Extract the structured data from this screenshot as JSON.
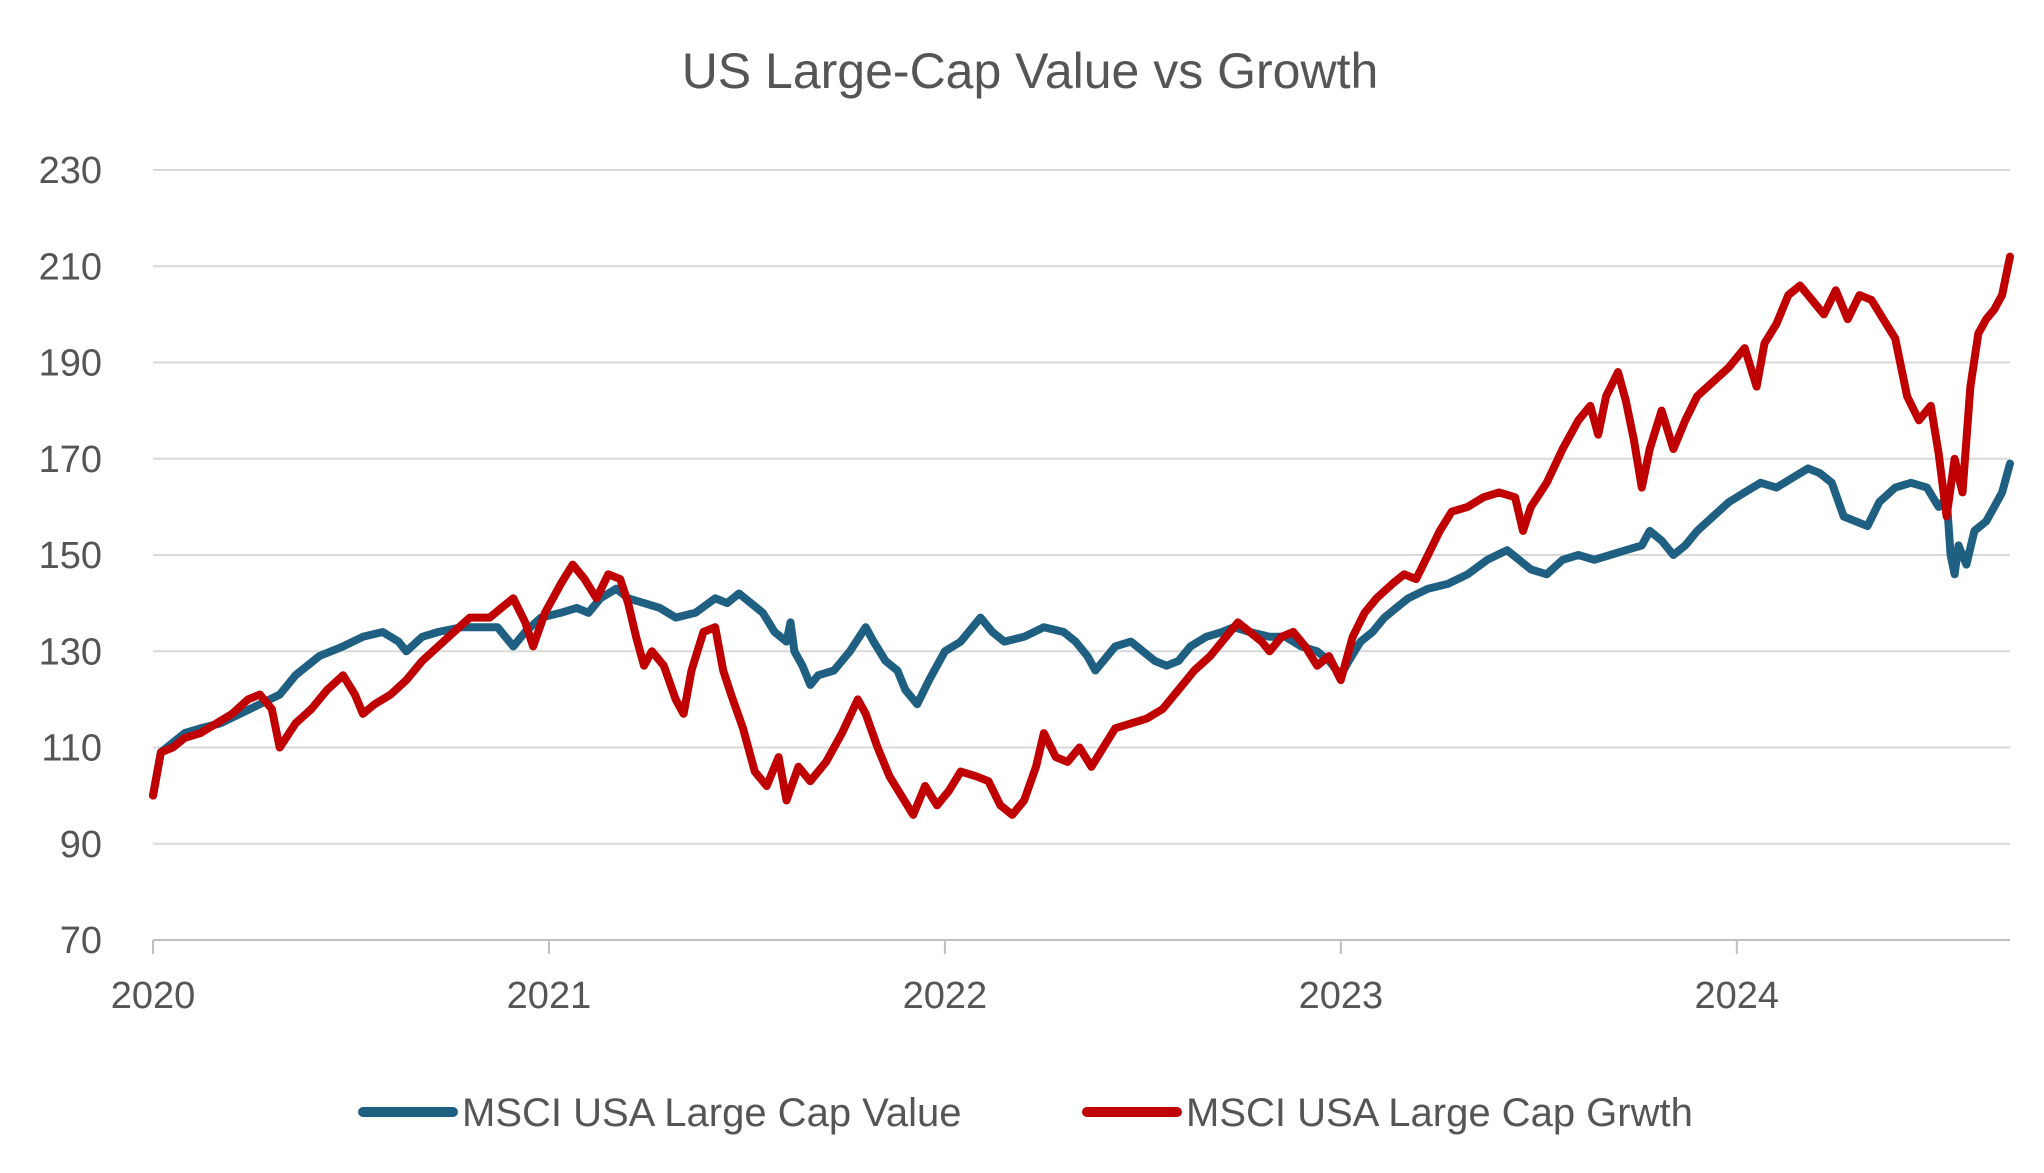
{
  "chart_data": {
    "type": "line",
    "title": "US Large-Cap Value vs Growth",
    "xlabel": "",
    "ylabel": "",
    "ylim": [
      70,
      230
    ],
    "yticks": [
      70,
      90,
      110,
      130,
      150,
      170,
      190,
      210,
      230
    ],
    "xlim": [
      2020.0,
      2024.69
    ],
    "xticks": [
      2020,
      2021,
      2022,
      2023,
      2024
    ],
    "xtick_labels": [
      "2020",
      "2021",
      "2022",
      "2023",
      "2024"
    ],
    "grid": true,
    "legend": "bottom",
    "series": [
      {
        "name": "MSCI USA Large Cap Value",
        "color": "#1f5f82",
        "points": [
          [
            2020.0,
            100
          ],
          [
            2020.02,
            109
          ],
          [
            2020.05,
            111
          ],
          [
            2020.08,
            113
          ],
          [
            2020.12,
            114
          ],
          [
            2020.17,
            115
          ],
          [
            2020.22,
            117
          ],
          [
            2020.27,
            119
          ],
          [
            2020.32,
            121
          ],
          [
            2020.36,
            125
          ],
          [
            2020.42,
            129
          ],
          [
            2020.48,
            131
          ],
          [
            2020.53,
            133
          ],
          [
            2020.58,
            134
          ],
          [
            2020.62,
            132
          ],
          [
            2020.64,
            130
          ],
          [
            2020.68,
            133
          ],
          [
            2020.72,
            134
          ],
          [
            2020.78,
            135
          ],
          [
            2020.83,
            135
          ],
          [
            2020.87,
            135
          ],
          [
            2020.91,
            131
          ],
          [
            2020.94,
            134
          ],
          [
            2020.98,
            137
          ],
          [
            2021.03,
            138
          ],
          [
            2021.07,
            139
          ],
          [
            2021.1,
            138
          ],
          [
            2021.13,
            141
          ],
          [
            2021.17,
            143
          ],
          [
            2021.2,
            141
          ],
          [
            2021.24,
            140
          ],
          [
            2021.28,
            139
          ],
          [
            2021.32,
            137
          ],
          [
            2021.37,
            138
          ],
          [
            2021.42,
            141
          ],
          [
            2021.45,
            140
          ],
          [
            2021.48,
            142
          ],
          [
            2021.51,
            140
          ],
          [
            2021.54,
            138
          ],
          [
            2021.57,
            134
          ],
          [
            2021.6,
            132
          ],
          [
            2021.61,
            136
          ],
          [
            2021.62,
            130
          ],
          [
            2021.64,
            127
          ],
          [
            2021.66,
            123
          ],
          [
            2021.68,
            125
          ],
          [
            2021.72,
            126
          ],
          [
            2021.76,
            130
          ],
          [
            2021.8,
            135
          ],
          [
            2021.82,
            132
          ],
          [
            2021.85,
            128
          ],
          [
            2021.88,
            126
          ],
          [
            2021.9,
            122
          ],
          [
            2021.93,
            119
          ],
          [
            2021.96,
            124
          ],
          [
            2022.0,
            130
          ],
          [
            2022.04,
            132
          ],
          [
            2022.07,
            135
          ],
          [
            2022.09,
            137
          ],
          [
            2022.12,
            134
          ],
          [
            2022.15,
            132
          ],
          [
            2022.2,
            133
          ],
          [
            2022.25,
            135
          ],
          [
            2022.3,
            134
          ],
          [
            2022.33,
            132
          ],
          [
            2022.36,
            129
          ],
          [
            2022.38,
            126
          ],
          [
            2022.4,
            128
          ],
          [
            2022.43,
            131
          ],
          [
            2022.47,
            132
          ],
          [
            2022.5,
            130
          ],
          [
            2022.53,
            128
          ],
          [
            2022.56,
            127
          ],
          [
            2022.59,
            128
          ],
          [
            2022.62,
            131
          ],
          [
            2022.66,
            133
          ],
          [
            2022.7,
            134
          ],
          [
            2022.73,
            135
          ],
          [
            2022.77,
            134
          ],
          [
            2022.82,
            133
          ],
          [
            2022.86,
            133
          ],
          [
            2022.9,
            131
          ],
          [
            2022.94,
            130
          ],
          [
            2022.97,
            128
          ],
          [
            2023.0,
            125
          ],
          [
            2023.02,
            128
          ],
          [
            2023.05,
            132
          ],
          [
            2023.08,
            134
          ],
          [
            2023.11,
            137
          ],
          [
            2023.14,
            139
          ],
          [
            2023.17,
            141
          ],
          [
            2023.22,
            143
          ],
          [
            2023.27,
            144
          ],
          [
            2023.32,
            146
          ],
          [
            2023.37,
            149
          ],
          [
            2023.42,
            151
          ],
          [
            2023.45,
            149
          ],
          [
            2023.48,
            147
          ],
          [
            2023.52,
            146
          ],
          [
            2023.56,
            149
          ],
          [
            2023.6,
            150
          ],
          [
            2023.64,
            149
          ],
          [
            2023.68,
            150
          ],
          [
            2023.72,
            151
          ],
          [
            2023.76,
            152
          ],
          [
            2023.78,
            155
          ],
          [
            2023.81,
            153
          ],
          [
            2023.84,
            150
          ],
          [
            2023.87,
            152
          ],
          [
            2023.9,
            155
          ],
          [
            2023.94,
            158
          ],
          [
            2023.98,
            161
          ],
          [
            2024.02,
            163
          ],
          [
            2024.06,
            165
          ],
          [
            2024.1,
            164
          ],
          [
            2024.14,
            166
          ],
          [
            2024.18,
            168
          ],
          [
            2024.21,
            167
          ],
          [
            2024.24,
            165
          ],
          [
            2024.27,
            158
          ],
          [
            2024.3,
            157
          ],
          [
            2024.33,
            156
          ],
          [
            2024.36,
            161
          ],
          [
            2024.4,
            164
          ],
          [
            2024.44,
            165
          ],
          [
            2024.48,
            164
          ],
          [
            2024.51,
            160
          ],
          [
            2024.53,
            162
          ],
          [
            2024.54,
            150
          ],
          [
            2024.55,
            146
          ],
          [
            2024.56,
            152
          ],
          [
            2024.58,
            148
          ],
          [
            2024.6,
            155
          ],
          [
            2024.63,
            157
          ],
          [
            2024.65,
            160
          ],
          [
            2024.67,
            163
          ],
          [
            2024.69,
            169
          ]
        ]
      },
      {
        "name": "MSCI USA Large Cap Grwth",
        "color": "#c00000",
        "points": [
          [
            2020.0,
            100
          ],
          [
            2020.02,
            109
          ],
          [
            2020.05,
            110
          ],
          [
            2020.08,
            112
          ],
          [
            2020.12,
            113
          ],
          [
            2020.16,
            115
          ],
          [
            2020.2,
            117
          ],
          [
            2020.24,
            120
          ],
          [
            2020.27,
            121
          ],
          [
            2020.3,
            118
          ],
          [
            2020.32,
            110
          ],
          [
            2020.36,
            115
          ],
          [
            2020.4,
            118
          ],
          [
            2020.44,
            122
          ],
          [
            2020.48,
            125
          ],
          [
            2020.51,
            121
          ],
          [
            2020.53,
            117
          ],
          [
            2020.56,
            119
          ],
          [
            2020.6,
            121
          ],
          [
            2020.64,
            124
          ],
          [
            2020.68,
            128
          ],
          [
            2020.72,
            131
          ],
          [
            2020.76,
            134
          ],
          [
            2020.8,
            137
          ],
          [
            2020.85,
            137
          ],
          [
            2020.88,
            139
          ],
          [
            2020.91,
            141
          ],
          [
            2020.94,
            136
          ],
          [
            2020.96,
            131
          ],
          [
            2020.99,
            138
          ],
          [
            2021.03,
            144
          ],
          [
            2021.06,
            148
          ],
          [
            2021.09,
            145
          ],
          [
            2021.12,
            141
          ],
          [
            2021.15,
            146
          ],
          [
            2021.18,
            145
          ],
          [
            2021.2,
            140
          ],
          [
            2021.22,
            133
          ],
          [
            2021.24,
            127
          ],
          [
            2021.26,
            130
          ],
          [
            2021.29,
            127
          ],
          [
            2021.32,
            120
          ],
          [
            2021.34,
            117
          ],
          [
            2021.36,
            126
          ],
          [
            2021.39,
            134
          ],
          [
            2021.42,
            135
          ],
          [
            2021.44,
            126
          ],
          [
            2021.46,
            121
          ],
          [
            2021.49,
            114
          ],
          [
            2021.52,
            105
          ],
          [
            2021.55,
            102
          ],
          [
            2021.58,
            108
          ],
          [
            2021.6,
            99
          ],
          [
            2021.63,
            106
          ],
          [
            2021.66,
            103
          ],
          [
            2021.7,
            107
          ],
          [
            2021.74,
            113
          ],
          [
            2021.78,
            120
          ],
          [
            2021.8,
            117
          ],
          [
            2021.83,
            110
          ],
          [
            2021.86,
            104
          ],
          [
            2021.89,
            100
          ],
          [
            2021.92,
            96
          ],
          [
            2021.95,
            102
          ],
          [
            2021.98,
            98
          ],
          [
            2022.01,
            101
          ],
          [
            2022.04,
            105
          ],
          [
            2022.08,
            104
          ],
          [
            2022.11,
            103
          ],
          [
            2022.14,
            98
          ],
          [
            2022.17,
            96
          ],
          [
            2022.2,
            99
          ],
          [
            2022.23,
            106
          ],
          [
            2022.25,
            113
          ],
          [
            2022.28,
            108
          ],
          [
            2022.31,
            107
          ],
          [
            2022.34,
            110
          ],
          [
            2022.37,
            106
          ],
          [
            2022.4,
            110
          ],
          [
            2022.43,
            114
          ],
          [
            2022.47,
            115
          ],
          [
            2022.51,
            116
          ],
          [
            2022.55,
            118
          ],
          [
            2022.59,
            122
          ],
          [
            2022.63,
            126
          ],
          [
            2022.67,
            129
          ],
          [
            2022.71,
            133
          ],
          [
            2022.74,
            136
          ],
          [
            2022.77,
            134
          ],
          [
            2022.8,
            132
          ],
          [
            2022.82,
            130
          ],
          [
            2022.85,
            133
          ],
          [
            2022.88,
            134
          ],
          [
            2022.91,
            131
          ],
          [
            2022.94,
            127
          ],
          [
            2022.97,
            129
          ],
          [
            2023.0,
            124
          ],
          [
            2023.03,
            133
          ],
          [
            2023.06,
            138
          ],
          [
            2023.09,
            141
          ],
          [
            2023.13,
            144
          ],
          [
            2023.16,
            146
          ],
          [
            2023.19,
            145
          ],
          [
            2023.22,
            150
          ],
          [
            2023.25,
            155
          ],
          [
            2023.28,
            159
          ],
          [
            2023.32,
            160
          ],
          [
            2023.36,
            162
          ],
          [
            2023.4,
            163
          ],
          [
            2023.44,
            162
          ],
          [
            2023.46,
            155
          ],
          [
            2023.48,
            160
          ],
          [
            2023.52,
            165
          ],
          [
            2023.56,
            172
          ],
          [
            2023.6,
            178
          ],
          [
            2023.63,
            181
          ],
          [
            2023.65,
            175
          ],
          [
            2023.67,
            183
          ],
          [
            2023.7,
            188
          ],
          [
            2023.72,
            182
          ],
          [
            2023.74,
            174
          ],
          [
            2023.76,
            164
          ],
          [
            2023.78,
            172
          ],
          [
            2023.81,
            180
          ],
          [
            2023.84,
            172
          ],
          [
            2023.87,
            178
          ],
          [
            2023.9,
            183
          ],
          [
            2023.94,
            186
          ],
          [
            2023.98,
            189
          ],
          [
            2024.02,
            193
          ],
          [
            2024.05,
            185
          ],
          [
            2024.07,
            194
          ],
          [
            2024.1,
            198
          ],
          [
            2024.13,
            204
          ],
          [
            2024.16,
            206
          ],
          [
            2024.19,
            203
          ],
          [
            2024.22,
            200
          ],
          [
            2024.25,
            205
          ],
          [
            2024.28,
            199
          ],
          [
            2024.31,
            204
          ],
          [
            2024.34,
            203
          ],
          [
            2024.37,
            199
          ],
          [
            2024.4,
            195
          ],
          [
            2024.43,
            183
          ],
          [
            2024.46,
            178
          ],
          [
            2024.49,
            181
          ],
          [
            2024.51,
            171
          ],
          [
            2024.53,
            158
          ],
          [
            2024.55,
            170
          ],
          [
            2024.57,
            163
          ],
          [
            2024.59,
            185
          ],
          [
            2024.61,
            196
          ],
          [
            2024.63,
            199
          ],
          [
            2024.65,
            201
          ],
          [
            2024.67,
            204
          ],
          [
            2024.69,
            212
          ]
        ]
      }
    ]
  }
}
